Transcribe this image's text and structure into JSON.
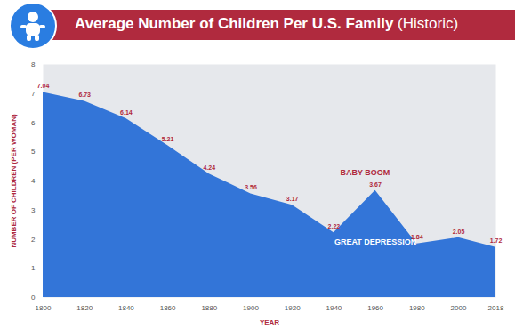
{
  "chart_data": {
    "type": "area",
    "title": "Average Number of Children Per U.S. Family",
    "subtitle": "(Historic)",
    "x_label": "YEAR",
    "y_label": "NUMBER OF CHILDREN (PER WOMAN)",
    "x": [
      1800,
      1820,
      1840,
      1860,
      1880,
      1900,
      1920,
      1940,
      1960,
      1980,
      2000,
      2018
    ],
    "values": [
      7.04,
      6.73,
      6.14,
      5.21,
      4.24,
      3.56,
      3.17,
      2.22,
      3.67,
      1.84,
      2.05,
      1.72
    ],
    "color": "#1f68d6",
    "xlim": [
      1800,
      2018
    ],
    "xticks": [
      1800,
      1820,
      1840,
      1860,
      1880,
      1900,
      1920,
      1940,
      1960,
      1980,
      2000,
      2018
    ],
    "ylim": [
      0,
      8
    ],
    "yticks": [
      0,
      1,
      2,
      3,
      4,
      5,
      6,
      7,
      8
    ],
    "data_labels": true,
    "annotations": [
      {
        "text": "BABY BOOM",
        "x": 1955,
        "y": 4.3
      },
      {
        "text": "GREAT DEPRESSION",
        "x": 1960,
        "y": 1.9
      }
    ]
  }
}
